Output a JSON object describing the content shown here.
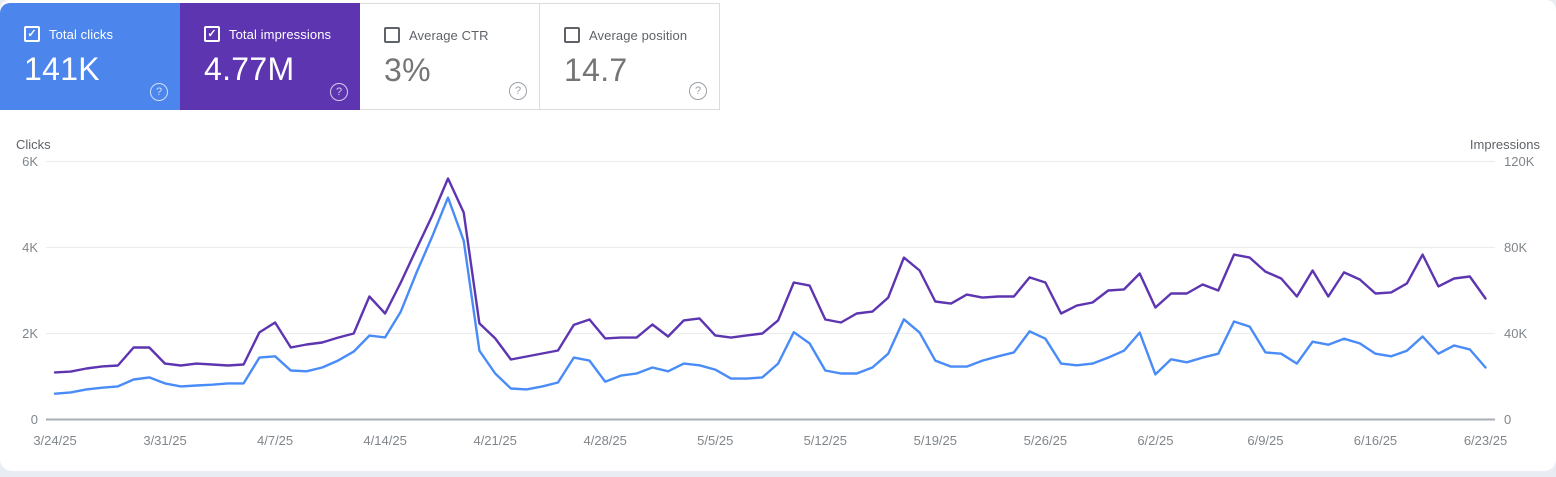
{
  "icons": {
    "check": "✓",
    "help": "?"
  },
  "colors": {
    "clicks_card_bg": "#4c85ec",
    "impressions_card_bg": "#5e35b1",
    "clicks_line": "#4a8cf7",
    "impressions_line": "#5e35b1",
    "grid": "#ededee",
    "axis_line": "#a9aeb6",
    "tick_text": "#80868b"
  },
  "cards": [
    {
      "label": "Total clicks",
      "value": "141K",
      "checked": true,
      "style": "colored",
      "bg": "#4c85ec"
    },
    {
      "label": "Total impressions",
      "value": "4.77M",
      "checked": true,
      "style": "colored",
      "bg": "#5e35b1"
    },
    {
      "label": "Average CTR",
      "value": "3%",
      "checked": false,
      "style": "white",
      "bg": "#ffffff"
    },
    {
      "label": "Average position",
      "value": "14.7",
      "checked": false,
      "style": "white",
      "bg": "#ffffff"
    }
  ],
  "chart_data": {
    "type": "line",
    "title": "",
    "grid": true,
    "legend": "none",
    "left_axis": {
      "title": "Clicks",
      "ticks": [
        "0",
        "2K",
        "4K",
        "6K"
      ],
      "max": 6000
    },
    "right_axis": {
      "title": "Impressions",
      "ticks": [
        "0",
        "40K",
        "80K",
        "120K"
      ],
      "max": 120000
    },
    "x_ticks": [
      "3/24/25",
      "3/31/25",
      "4/7/25",
      "4/14/25",
      "4/21/25",
      "4/28/25",
      "5/5/25",
      "5/12/25",
      "5/19/25",
      "5/26/25",
      "6/2/25",
      "6/9/25",
      "6/16/25",
      "6/23/25"
    ],
    "x": [
      "3/24/25",
      "3/25/25",
      "3/26/25",
      "3/27/25",
      "3/28/25",
      "3/29/25",
      "3/30/25",
      "3/31/25",
      "4/1/25",
      "4/2/25",
      "4/3/25",
      "4/4/25",
      "4/5/25",
      "4/6/25",
      "4/7/25",
      "4/8/25",
      "4/9/25",
      "4/10/25",
      "4/11/25",
      "4/12/25",
      "4/13/25",
      "4/14/25",
      "4/15/25",
      "4/16/25",
      "4/17/25",
      "4/18/25",
      "4/19/25",
      "4/20/25",
      "4/21/25",
      "4/22/25",
      "4/23/25",
      "4/24/25",
      "4/25/25",
      "4/26/25",
      "4/27/25",
      "4/28/25",
      "4/29/25",
      "4/30/25",
      "5/1/25",
      "5/2/25",
      "5/3/25",
      "5/4/25",
      "5/5/25",
      "5/6/25",
      "5/7/25",
      "5/8/25",
      "5/9/25",
      "5/10/25",
      "5/11/25",
      "5/12/25",
      "5/13/25",
      "5/14/25",
      "5/15/25",
      "5/16/25",
      "5/17/25",
      "5/18/25",
      "5/19/25",
      "5/20/25",
      "5/21/25",
      "5/22/25",
      "5/23/25",
      "5/24/25",
      "5/25/25",
      "5/26/25",
      "5/27/25",
      "5/28/25",
      "5/29/25",
      "5/30/25",
      "5/31/25",
      "6/1/25",
      "6/2/25",
      "6/3/25",
      "6/4/25",
      "6/5/25",
      "6/6/25",
      "6/7/25",
      "6/8/25",
      "6/9/25",
      "6/10/25",
      "6/11/25",
      "6/12/25",
      "6/13/25",
      "6/14/25",
      "6/15/25",
      "6/16/25",
      "6/17/25",
      "6/18/25",
      "6/19/25",
      "6/20/25",
      "6/21/25",
      "6/22/25",
      "6/23/25"
    ],
    "series": [
      {
        "name": "Clicks",
        "axis": "left",
        "color": "#4a8cf7",
        "values": [
          600,
          630,
          700,
          740,
          770,
          930,
          980,
          840,
          770,
          790,
          810,
          840,
          840,
          1440,
          1470,
          1140,
          1120,
          1210,
          1370,
          1580,
          1950,
          1910,
          2510,
          3420,
          4260,
          5160,
          4160,
          1600,
          1070,
          720,
          700,
          770,
          860,
          1440,
          1370,
          880,
          1020,
          1070,
          1210,
          1120,
          1300,
          1260,
          1160,
          950,
          950,
          980,
          1300,
          2030,
          1770,
          1140,
          1070,
          1070,
          1210,
          1530,
          2330,
          2020,
          1370,
          1230,
          1230,
          1370,
          1470,
          1560,
          2050,
          1880,
          1300,
          1260,
          1300,
          1440,
          1600,
          2020,
          1050,
          1400,
          1330,
          1440,
          1530,
          2280,
          2160,
          1560,
          1530,
          1300,
          1810,
          1740,
          1880,
          1770,
          1530,
          1470,
          1600,
          1930,
          1530,
          1720,
          1630,
          1210
        ]
      },
      {
        "name": "Impressions",
        "axis": "right",
        "color": "#5e35b1",
        "values": [
          21900,
          22300,
          23700,
          24700,
          25100,
          33500,
          33500,
          26000,
          25100,
          26000,
          25600,
          25100,
          25600,
          40500,
          45100,
          33500,
          34900,
          35800,
          38100,
          40000,
          57200,
          49300,
          63700,
          79500,
          94900,
          112100,
          96300,
          44700,
          37700,
          27900,
          29300,
          30700,
          32100,
          44000,
          46500,
          37700,
          38100,
          38100,
          44200,
          38600,
          46100,
          47000,
          39100,
          38100,
          39100,
          40000,
          46100,
          63700,
          62300,
          46500,
          45100,
          49300,
          50200,
          56700,
          75300,
          69300,
          54900,
          53900,
          58100,
          56700,
          57200,
          57200,
          66100,
          63700,
          49300,
          53000,
          54400,
          60000,
          60500,
          67900,
          52100,
          58600,
          58600,
          62800,
          60000,
          76700,
          75300,
          68800,
          65600,
          57200,
          69300,
          57200,
          68400,
          65100,
          58600,
          59100,
          63300,
          76700,
          61900,
          65600,
          66500,
          56300
        ]
      }
    ]
  }
}
